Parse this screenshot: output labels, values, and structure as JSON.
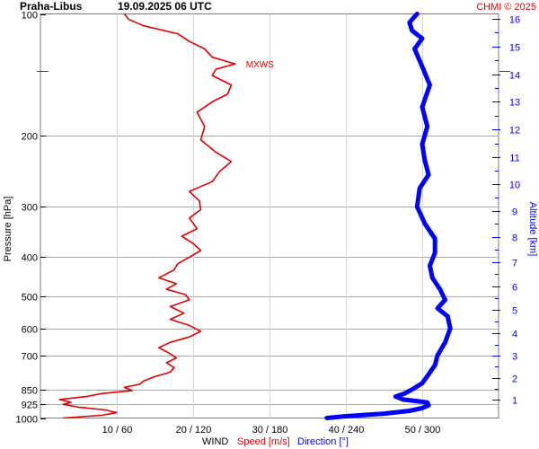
{
  "chart_data": {
    "type": "line",
    "title": "Praha-Libus",
    "subtitle": "19.09.2025 06 UTC",
    "credit": "CHMI © 2025",
    "left_axis": {
      "label": "Pressure [hPa]",
      "scale": "log",
      "range": [
        1000,
        100
      ],
      "ticks": [
        100,
        200,
        300,
        400,
        500,
        600,
        700,
        850,
        925,
        1000
      ]
    },
    "right_axis": {
      "label": "Altitude [km]",
      "ticks": [
        1,
        2,
        3,
        4,
        5,
        6,
        7,
        8,
        9,
        10,
        11,
        12,
        13,
        14,
        15,
        16
      ]
    },
    "bottom_axis": {
      "prefix": "WIND",
      "speed_label": "Speed [m/s]",
      "direction_label": "Direction [°]",
      "ticks": [
        "10 / 60",
        "20 / 120",
        "30 / 180",
        "40 / 240",
        "50 / 300"
      ],
      "speed_range": [
        0,
        60
      ],
      "direction_range": [
        0,
        360
      ]
    },
    "annotation": {
      "text": "MXWS",
      "pressure": 133,
      "speed": 25.5
    },
    "series": [
      {
        "name": "Speed [m/s]",
        "color": "#e00000",
        "points": [
          [
            1000,
            3
          ],
          [
            985,
            8
          ],
          [
            970,
            10
          ],
          [
            955,
            8.5
          ],
          [
            940,
            5
          ],
          [
            925,
            3
          ],
          [
            915,
            4
          ],
          [
            900,
            2.5
          ],
          [
            885,
            6
          ],
          [
            870,
            8
          ],
          [
            855,
            12
          ],
          [
            840,
            11
          ],
          [
            825,
            13
          ],
          [
            810,
            13.5
          ],
          [
            790,
            15
          ],
          [
            770,
            17
          ],
          [
            750,
            17.5
          ],
          [
            730,
            16.5
          ],
          [
            710,
            17.8
          ],
          [
            690,
            16.8
          ],
          [
            670,
            15.5
          ],
          [
            650,
            17
          ],
          [
            630,
            19.5
          ],
          [
            610,
            21
          ],
          [
            590,
            19.5
          ],
          [
            570,
            17
          ],
          [
            550,
            18.8
          ],
          [
            530,
            17
          ],
          [
            510,
            19.5
          ],
          [
            495,
            19
          ],
          [
            480,
            16.5
          ],
          [
            465,
            17.8
          ],
          [
            450,
            15.5
          ],
          [
            430,
            17.5
          ],
          [
            415,
            18
          ],
          [
            400,
            19.5
          ],
          [
            385,
            21
          ],
          [
            370,
            20
          ],
          [
            355,
            18.5
          ],
          [
            340,
            20.5
          ],
          [
            320,
            19.5
          ],
          [
            305,
            21
          ],
          [
            290,
            20.8
          ],
          [
            275,
            19.5
          ],
          [
            260,
            22.5
          ],
          [
            245,
            23.5
          ],
          [
            232,
            25
          ],
          [
            220,
            23
          ],
          [
            205,
            21
          ],
          [
            190,
            21.5
          ],
          [
            175,
            20.5
          ],
          [
            165,
            22.5
          ],
          [
            158,
            24.5
          ],
          [
            150,
            25
          ],
          [
            142,
            22.5
          ],
          [
            137,
            23
          ],
          [
            133,
            25.5
          ],
          [
            128,
            22.5
          ],
          [
            122,
            21.5
          ],
          [
            117,
            19.5
          ],
          [
            112,
            18
          ],
          [
            107,
            13.5
          ],
          [
            103,
            11.5
          ],
          [
            100,
            11
          ]
        ]
      },
      {
        "name": "Direction [°]",
        "color": "#0000ff",
        "points": [
          [
            1000,
            225
          ],
          [
            990,
            240
          ],
          [
            975,
            270
          ],
          [
            960,
            290
          ],
          [
            945,
            300
          ],
          [
            930,
            305
          ],
          [
            915,
            304
          ],
          [
            900,
            285
          ],
          [
            885,
            279
          ],
          [
            870,
            286
          ],
          [
            850,
            292
          ],
          [
            820,
            300
          ],
          [
            780,
            305
          ],
          [
            740,
            310
          ],
          [
            700,
            312
          ],
          [
            650,
            318
          ],
          [
            600,
            322
          ],
          [
            560,
            320
          ],
          [
            535,
            312
          ],
          [
            510,
            318
          ],
          [
            480,
            314
          ],
          [
            450,
            308
          ],
          [
            420,
            306
          ],
          [
            390,
            310
          ],
          [
            360,
            310
          ],
          [
            330,
            302
          ],
          [
            300,
            296
          ],
          [
            270,
            298
          ],
          [
            250,
            305
          ],
          [
            230,
            302
          ],
          [
            210,
            300
          ],
          [
            190,
            304
          ],
          [
            170,
            300
          ],
          [
            150,
            306
          ],
          [
            135,
            300
          ],
          [
            122,
            294
          ],
          [
            115,
            300
          ],
          [
            110,
            292
          ],
          [
            105,
            290
          ],
          [
            100,
            296
          ]
        ]
      }
    ]
  }
}
